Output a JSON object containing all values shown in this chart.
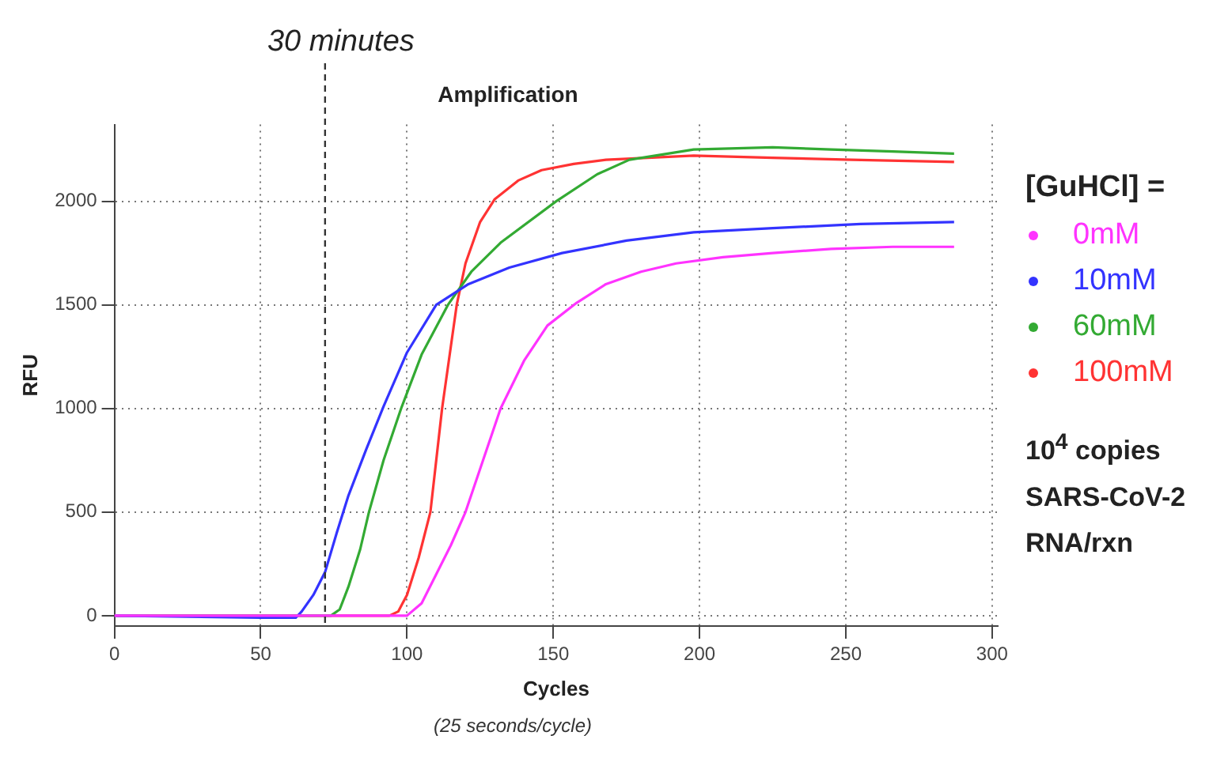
{
  "chart_data": {
    "type": "line",
    "title": "Amplification",
    "xlabel": "Cycles",
    "ylabel": "RFU",
    "legend_title": "[GuHCl] =",
    "legend": "right",
    "grid": true,
    "marker": "none",
    "line_style": "solid",
    "xlim": [
      0,
      302
    ],
    "xticks": [
      0,
      50,
      100,
      150,
      200,
      250,
      300
    ],
    "ylim": [
      -50,
      2370
    ],
    "yticks": [
      0,
      500,
      1000,
      1500,
      2000
    ],
    "ref_lines": [
      {
        "axis": "x",
        "value": 72,
        "label": "30 minutes",
        "line_style": "dashed",
        "color": "#333333"
      }
    ],
    "annotations": [
      "10$^{4}$ copies SARS-CoV-2 RNA/rxn",
      "(25 seconds/cycle)"
    ],
    "series": [
      {
        "name": "0mM",
        "color": "#ff33ff",
        "x": [
          0,
          50,
          100,
          105,
          110,
          115,
          120,
          126,
          132,
          140,
          148,
          158,
          168,
          180,
          192,
          208,
          225,
          245,
          266,
          287
        ],
        "values": [
          0,
          0,
          0,
          60,
          200,
          340,
          500,
          750,
          1000,
          1230,
          1400,
          1510,
          1600,
          1660,
          1700,
          1730,
          1750,
          1770,
          1780,
          1780
        ]
      },
      {
        "name": "10mM",
        "color": "#3333ff",
        "x": [
          0,
          50,
          62,
          64,
          68,
          72,
          76,
          80,
          86,
          92,
          100,
          110,
          121,
          135,
          153,
          175,
          198,
          225,
          255,
          287
        ],
        "values": [
          0,
          -10,
          -10,
          20,
          100,
          210,
          400,
          580,
          800,
          1010,
          1270,
          1500,
          1600,
          1680,
          1750,
          1810,
          1850,
          1870,
          1890,
          1900
        ]
      },
      {
        "name": "60mM",
        "color": "#33aa33",
        "x": [
          0,
          50,
          74,
          77,
          80,
          84,
          87,
          92,
          98,
          105,
          114,
          122,
          132,
          151,
          165,
          176,
          198,
          225,
          245,
          266,
          287
        ],
        "values": [
          0,
          0,
          0,
          30,
          140,
          320,
          500,
          750,
          1000,
          1260,
          1500,
          1660,
          1800,
          2000,
          2130,
          2200,
          2250,
          2260,
          2250,
          2240,
          2230
        ]
      },
      {
        "name": "100mM",
        "color": "#ff3333",
        "x": [
          0,
          50,
          94,
          97,
          100,
          104,
          108,
          112,
          115,
          117,
          120,
          125,
          130,
          138,
          146,
          157,
          168,
          198,
          225,
          252,
          287
        ],
        "values": [
          0,
          0,
          0,
          20,
          100,
          280,
          500,
          1000,
          1300,
          1500,
          1700,
          1900,
          2010,
          2100,
          2150,
          2180,
          2200,
          2220,
          2210,
          2200,
          2190
        ]
      }
    ]
  }
}
